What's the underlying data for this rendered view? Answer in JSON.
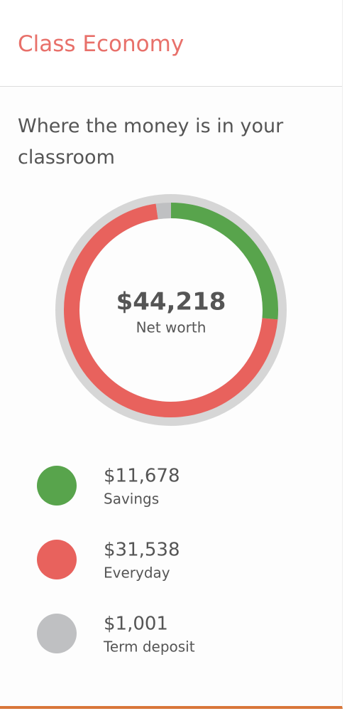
{
  "header": {
    "title": "Class Economy"
  },
  "chart_data": {
    "type": "donut",
    "title": "Where the money is in your classroom",
    "total": 44218,
    "total_label": "$44,218",
    "total_name": "Net worth",
    "categories": [
      "Savings",
      "Everyday",
      "Term deposit"
    ],
    "values": [
      11678,
      31538,
      1001
    ],
    "value_labels": [
      "$11,678",
      "$31,538",
      "$1,001"
    ],
    "colors": [
      "#58a44c",
      "#e8625d",
      "#bfc0c2"
    ]
  }
}
